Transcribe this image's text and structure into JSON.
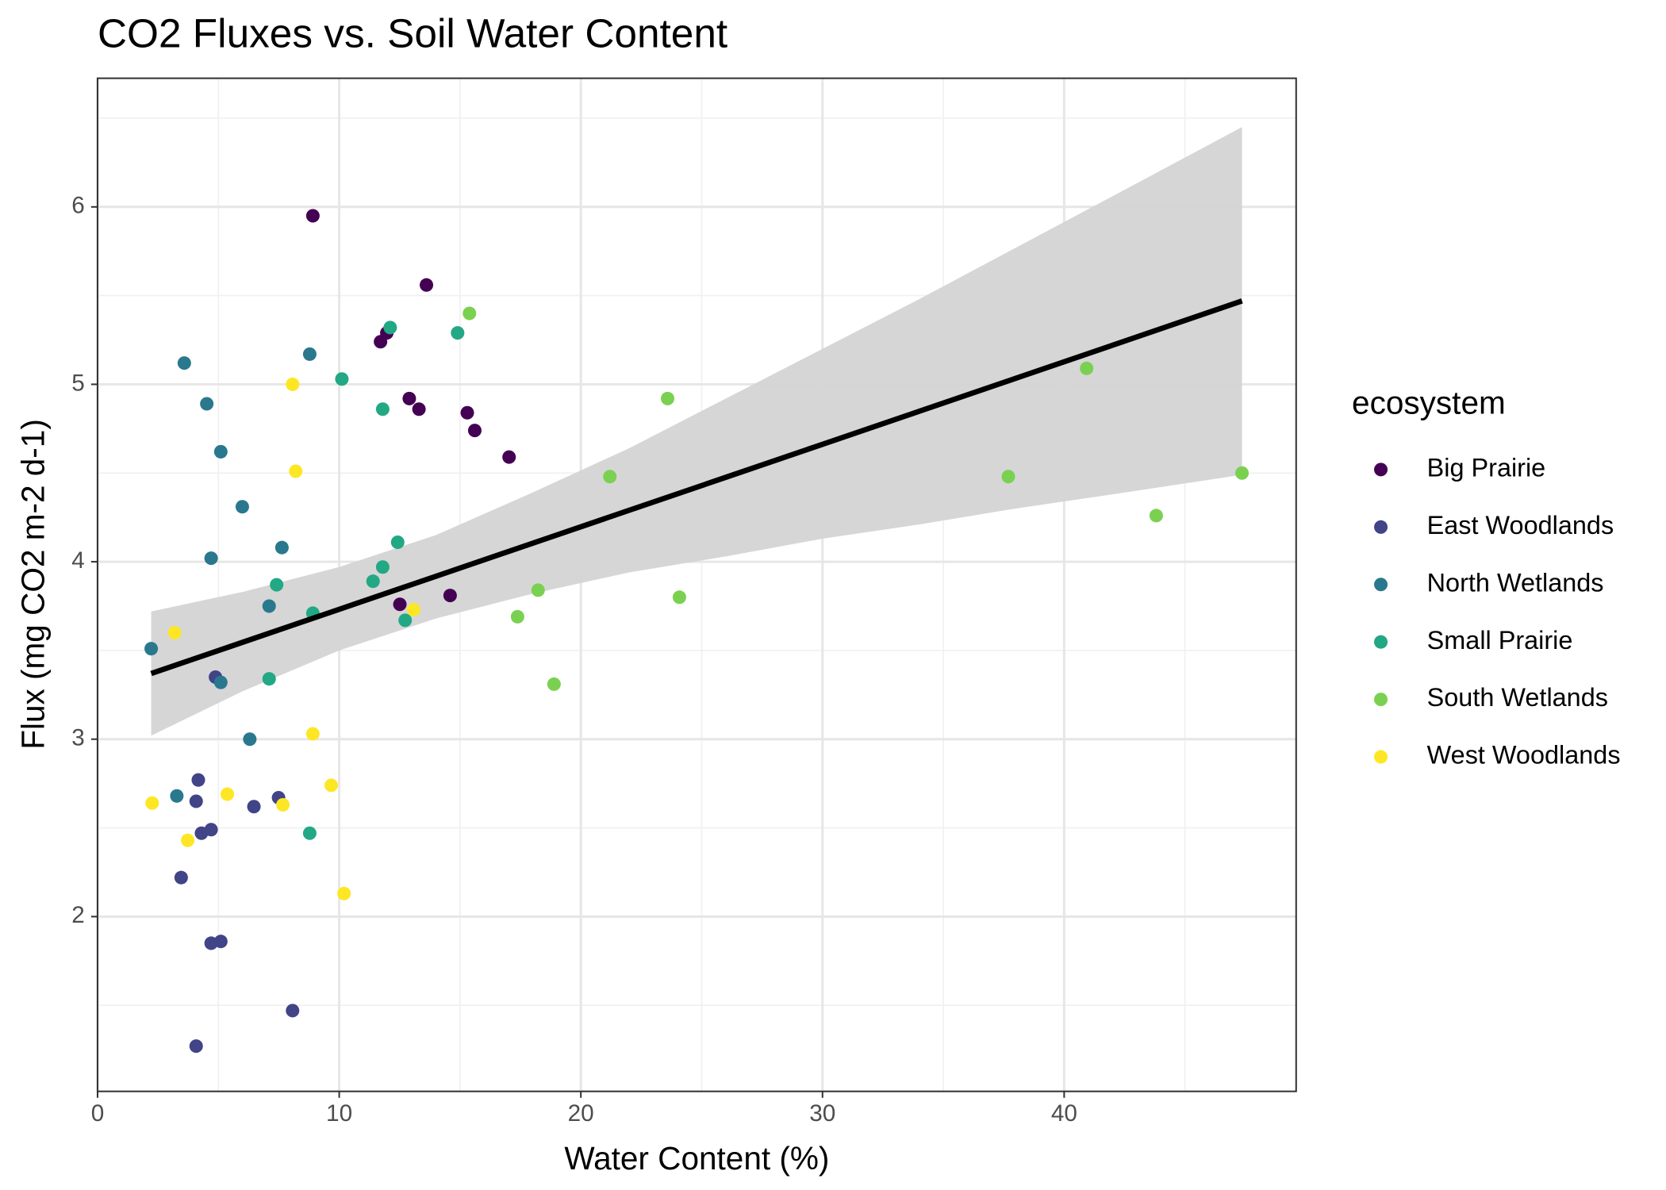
{
  "chart_data": {
    "type": "scatter",
    "title": "CO2 Fluxes vs. Soil Water Content",
    "x_label": "Water Content (%)",
    "y_label": "Flux (mg CO2 m-2 d-1)",
    "legend_title": "ecosystem",
    "legend_position": "right",
    "grid": true,
    "xlim": [
      0,
      49.6
    ],
    "ylim": [
      1.015,
      6.725
    ],
    "xticks": [
      0,
      10,
      20,
      30,
      40
    ],
    "yticks": [
      2,
      3,
      4,
      5,
      6
    ],
    "series": [
      {
        "name": "Big Prairie",
        "color": "#440154",
        "x": [
          8.91,
          13.61,
          11.71,
          11.97,
          12.9,
          13.3,
          15.3,
          15.61,
          17.03,
          12.51,
          14.59
        ],
        "y": [
          5.95,
          5.56,
          5.24,
          5.29,
          4.92,
          4.86,
          4.84,
          4.74,
          4.59,
          3.76,
          3.81
        ]
      },
      {
        "name": "East Woodlands",
        "color": "#414487",
        "x": [
          4.88,
          4.17,
          4.08,
          7.49,
          6.47,
          4.3,
          4.7,
          3.46,
          4.7,
          5.1,
          8.07,
          4.08
        ],
        "y": [
          3.35,
          2.77,
          2.65,
          2.67,
          2.62,
          2.47,
          2.49,
          2.22,
          1.85,
          1.86,
          1.47,
          1.27
        ]
      },
      {
        "name": "North Wetlands",
        "color": "#2a788e",
        "x": [
          3.59,
          8.78,
          4.52,
          5.1,
          5.99,
          7.63,
          4.7,
          7.1,
          2.22,
          5.1,
          6.3,
          3.28
        ],
        "y": [
          5.12,
          5.17,
          4.89,
          4.62,
          4.31,
          4.08,
          4.02,
          3.75,
          3.51,
          3.32,
          3.0,
          2.68
        ]
      },
      {
        "name": "Small Prairie",
        "color": "#22a884",
        "x": [
          12.11,
          14.9,
          10.11,
          11.8,
          12.42,
          11.8,
          11.4,
          7.41,
          8.91,
          12.73,
          7.1,
          8.78
        ],
        "y": [
          5.32,
          5.29,
          5.03,
          4.86,
          4.11,
          3.97,
          3.89,
          3.87,
          3.71,
          3.67,
          3.34,
          2.47
        ]
      },
      {
        "name": "South Wetlands",
        "color": "#7ad151",
        "x": [
          15.39,
          23.59,
          40.93,
          21.2,
          37.69,
          47.36,
          43.81,
          18.23,
          24.08,
          17.38,
          18.89
        ],
        "y": [
          5.4,
          4.92,
          5.09,
          4.48,
          4.48,
          4.5,
          4.26,
          3.84,
          3.8,
          3.69,
          3.31
        ]
      },
      {
        "name": "West Woodlands",
        "color": "#fde725",
        "x": [
          8.07,
          8.2,
          3.19,
          13.08,
          8.91,
          9.67,
          5.37,
          2.26,
          7.67,
          3.73,
          10.2
        ],
        "y": [
          5.0,
          4.51,
          3.6,
          3.73,
          3.03,
          2.74,
          2.69,
          2.64,
          2.63,
          2.43,
          2.13
        ]
      }
    ],
    "fit": {
      "color": "#000000",
      "band_color": "#d4d4d4",
      "x": [
        2.22,
        6,
        10,
        14,
        18,
        22,
        26,
        30,
        34,
        38,
        42,
        47.36
      ],
      "y": [
        3.37,
        3.546,
        3.732,
        3.918,
        4.104,
        4.29,
        4.476,
        4.662,
        4.848,
        5.034,
        5.22,
        5.47
      ],
      "ymin": [
        3.02,
        3.27,
        3.5,
        3.68,
        3.82,
        3.94,
        4.03,
        4.13,
        4.21,
        4.3,
        4.38,
        4.49
      ],
      "ymax": [
        3.72,
        3.83,
        3.97,
        4.15,
        4.39,
        4.64,
        4.92,
        5.2,
        5.48,
        5.77,
        6.06,
        6.45
      ]
    }
  }
}
